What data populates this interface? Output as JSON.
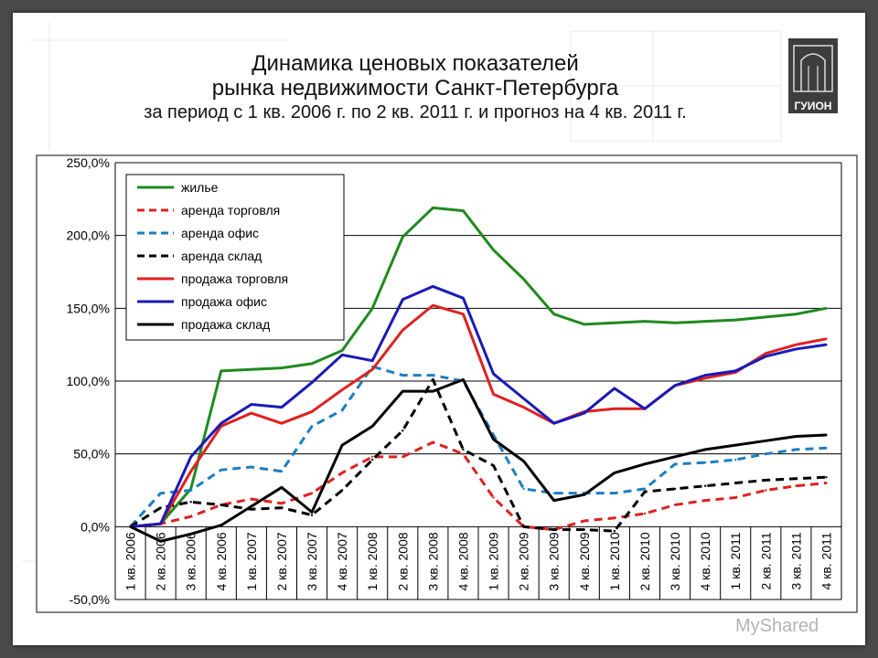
{
  "title": {
    "line1": "Динамика ценовых показателей",
    "line2": "рынка недвижимости Санкт-Петербурга",
    "line3": "за период с 1 кв. 2006 г.  по 2 кв. 2011 г. и прогноз на 4 кв. 2011 г."
  },
  "logo": {
    "text": "ГУИОН"
  },
  "watermark": {
    "text": "MyShared"
  },
  "chart_data": {
    "type": "line",
    "categories": [
      "1 кв. 2006",
      "2 кв. 2006",
      "3 кв. 2006",
      "4 кв. 2006",
      "1 кв. 2007",
      "2 кв. 2007",
      "3 кв. 2007",
      "4 кв. 2007",
      "1 кв. 2008",
      "2 кв. 2008",
      "3 кв. 2008",
      "4 кв. 2008",
      "1 кв. 2009",
      "2 кв. 2009",
      "3 кв. 2009",
      "4 кв. 2009",
      "1 кв. 2010",
      "2 кв. 2010",
      "3 кв. 2010",
      "4 кв. 2010",
      "1 кв. 2011",
      "2 кв. 2011",
      "3 кв. 2011",
      "4 кв. 2011"
    ],
    "ylim": [
      -50,
      250
    ],
    "yticks": [
      {
        "value": 250,
        "label": "250,0%"
      },
      {
        "value": 200,
        "label": "200,0%"
      },
      {
        "value": 150,
        "label": "150,0%"
      },
      {
        "value": 100,
        "label": "100,0%"
      },
      {
        "value": 50,
        "label": "50,0%"
      },
      {
        "value": 0,
        "label": "0,0%"
      },
      {
        "value": -50,
        "label": "-50,0%"
      }
    ],
    "grid": true,
    "legend_position": "top-left",
    "series": [
      {
        "name": "жилье",
        "color": "#1e8a1e",
        "dash": false,
        "values": [
          0,
          2,
          26,
          107,
          108,
          109,
          112,
          121,
          150,
          199,
          219,
          217,
          190,
          170,
          146,
          139,
          140,
          141,
          140,
          141,
          142,
          144,
          146,
          150
        ]
      },
      {
        "name": "аренда торговля",
        "color": "#e02020",
        "dash": true,
        "values": [
          0,
          2,
          7,
          15,
          19,
          16,
          23,
          37,
          48,
          48,
          58,
          50,
          20,
          0,
          -2,
          4,
          6,
          9,
          15,
          18,
          20,
          25,
          28,
          30
        ]
      },
      {
        "name": "аренда офис",
        "color": "#1a7fc0",
        "dash": true,
        "values": [
          0,
          23,
          25,
          39,
          41,
          38,
          69,
          80,
          110,
          104,
          104,
          100,
          63,
          26,
          23,
          23,
          23,
          26,
          43,
          44,
          46,
          50,
          53,
          54
        ]
      },
      {
        "name": "аренда склад",
        "color": "#000000",
        "dash": true,
        "values": [
          0,
          13,
          17,
          15,
          12,
          13,
          8,
          25,
          46,
          66,
          101,
          53,
          42,
          0,
          -2,
          -2,
          -3,
          24,
          26,
          28,
          30,
          32,
          33,
          34
        ]
      },
      {
        "name": "продажа торговля",
        "color": "#e02020",
        "dash": false,
        "values": [
          0,
          2,
          38,
          69,
          78,
          71,
          79,
          94,
          108,
          135,
          152,
          146,
          91,
          82,
          71,
          79,
          81,
          81,
          97,
          102,
          106,
          119,
          125,
          129
        ]
      },
      {
        "name": "продажа офис",
        "color": "#1a1ab8",
        "dash": false,
        "values": [
          0,
          2,
          48,
          71,
          84,
          82,
          99,
          118,
          114,
          156,
          165,
          157,
          105,
          88,
          71,
          78,
          95,
          81,
          97,
          104,
          107,
          117,
          122,
          125
        ]
      },
      {
        "name": "продажа склад",
        "color": "#000000",
        "dash": false,
        "values": [
          0,
          -10,
          -5,
          1,
          14,
          27,
          10,
          56,
          69,
          93,
          93,
          101,
          60,
          45,
          18,
          22,
          37,
          43,
          48,
          53,
          56,
          59,
          62,
          63
        ]
      }
    ]
  }
}
